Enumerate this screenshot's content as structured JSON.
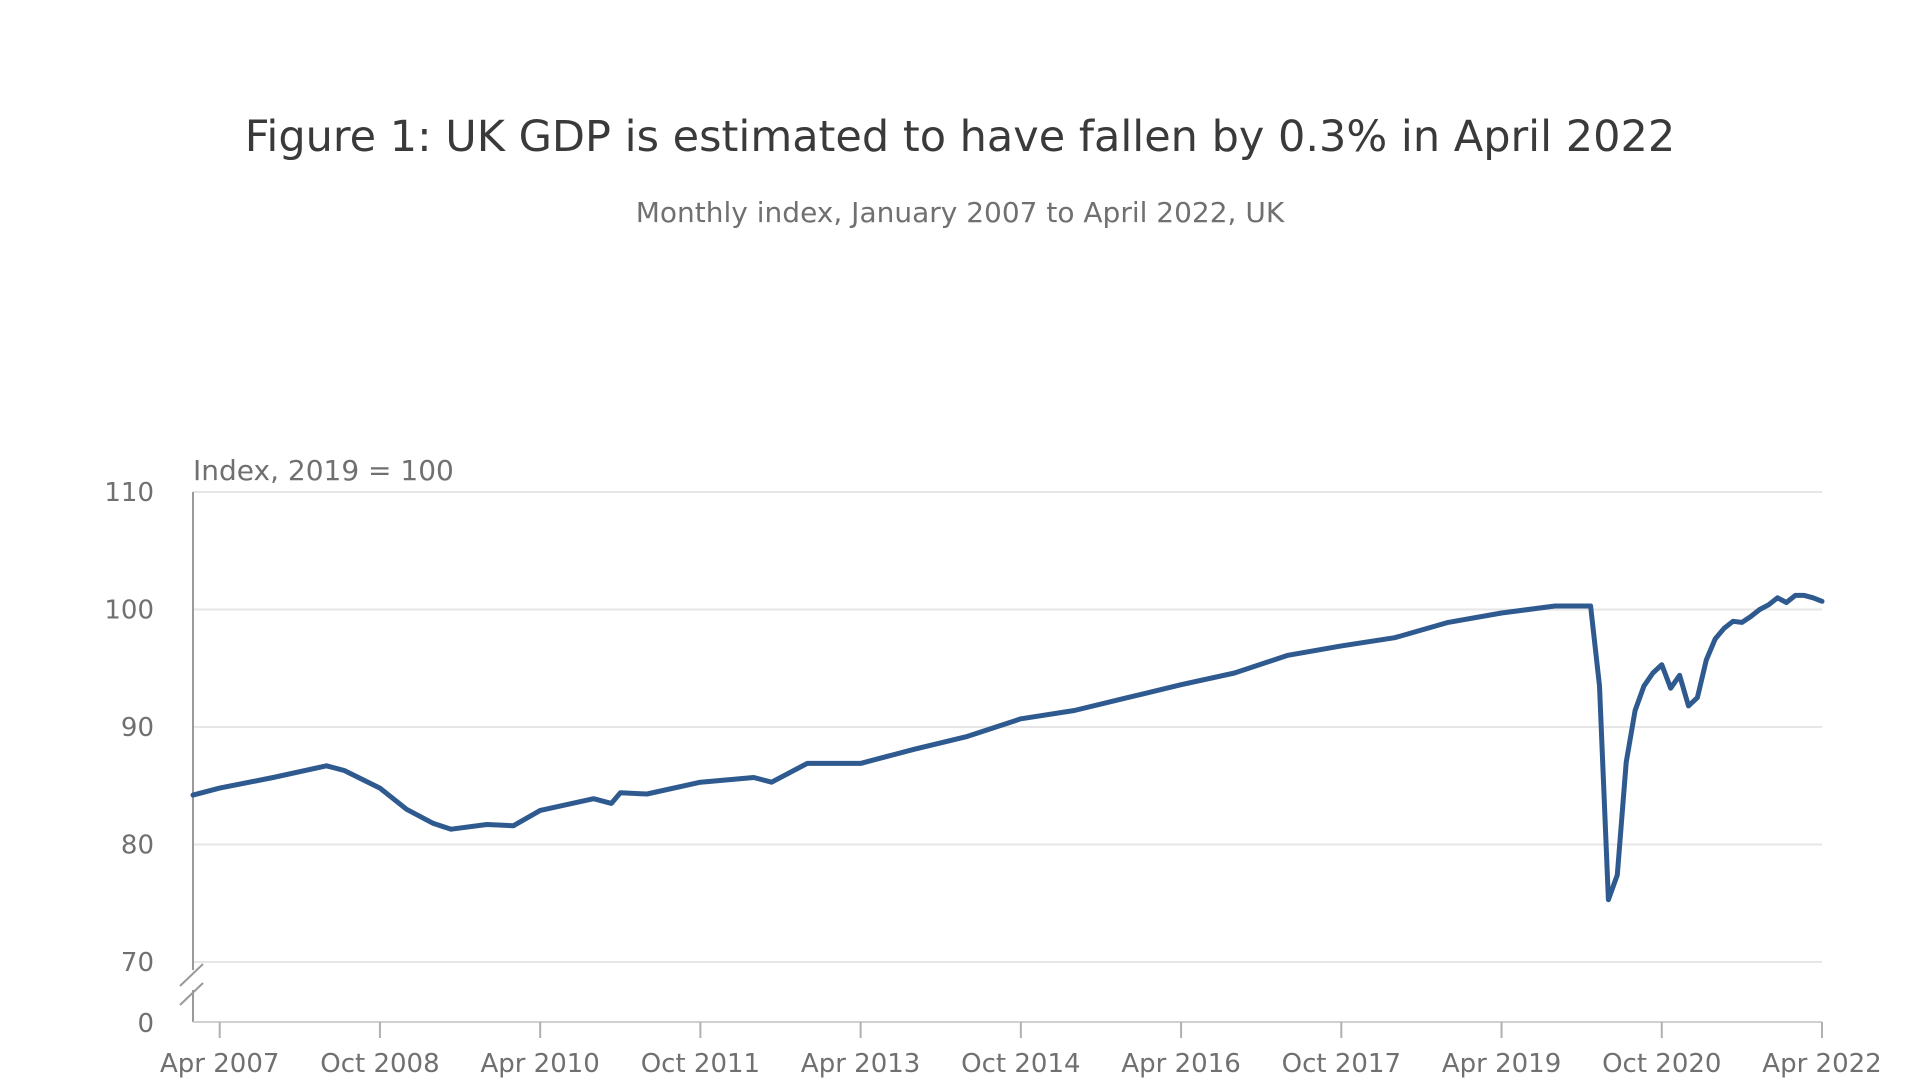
{
  "chart_data": {
    "type": "line",
    "title": "Figure 1: UK GDP is estimated to have fallen by 0.3% in April 2022",
    "subtitle": "Monthly index, January 2007 to April 2022, UK",
    "ylabel": "Index, 2019 = 100",
    "xlabel": "",
    "y_ticks": [
      "110",
      "100",
      "90",
      "80",
      "70",
      "0"
    ],
    "x_ticks": [
      "Apr 2007",
      "Oct 2008",
      "Apr 2010",
      "Oct 2011",
      "Apr 2013",
      "Oct 2014",
      "Apr 2016",
      "Oct 2017",
      "Apr 2019",
      "Oct 2020",
      "Apr 2022"
    ],
    "ylim": [
      70,
      110
    ],
    "axis_break": true,
    "grid": true,
    "line_color": "#2e5a8f",
    "series": [
      {
        "x": [
          "Jan 2007",
          "Apr 2007",
          "Oct 2007",
          "Apr 2008",
          "Jun 2008",
          "Oct 2008",
          "Jan 2009",
          "Apr 2009",
          "Jun 2009",
          "Oct 2009",
          "Jan 2010",
          "Apr 2010",
          "Oct 2010",
          "Dec 2010",
          "Jan 2011",
          "Apr 2011",
          "Oct 2011",
          "Apr 2012",
          "Jun 2012",
          "Oct 2012",
          "Apr 2013",
          "Oct 2013",
          "Apr 2014",
          "Oct 2014",
          "Apr 2015",
          "Oct 2015",
          "Apr 2016",
          "Oct 2016",
          "Apr 2017",
          "Oct 2017",
          "Apr 2018",
          "Oct 2018",
          "Apr 2019",
          "Oct 2019",
          "Feb 2020",
          "Mar 2020",
          "Apr 2020",
          "May 2020",
          "Jun 2020",
          "Jul 2020",
          "Aug 2020",
          "Sep 2020",
          "Oct 2020",
          "Nov 2020",
          "Dec 2020",
          "Jan 2021",
          "Feb 2021",
          "Mar 2021",
          "Apr 2021",
          "May 2021",
          "Jun 2021",
          "Jul 2021",
          "Aug 2021",
          "Sep 2021",
          "Oct 2021",
          "Nov 2021",
          "Dec 2021",
          "Jan 2022",
          "Feb 2022",
          "Mar 2022",
          "Apr 2022"
        ],
        "values": [
          84.2,
          84.8,
          85.7,
          86.7,
          86.3,
          84.8,
          83.0,
          81.8,
          81.3,
          81.7,
          81.6,
          82.9,
          83.9,
          83.5,
          84.4,
          84.3,
          85.3,
          85.7,
          85.3,
          86.9,
          86.9,
          88.1,
          89.2,
          90.7,
          91.4,
          92.5,
          93.6,
          94.6,
          96.1,
          96.9,
          97.6,
          98.9,
          99.7,
          100.3,
          100.3,
          93.5,
          75.3,
          77.4,
          87.0,
          91.4,
          93.5,
          94.6,
          95.3,
          93.3,
          94.4,
          91.8,
          92.5,
          95.7,
          97.5,
          98.4,
          99.0,
          98.9,
          99.4,
          100.0,
          100.4,
          101.0,
          100.6,
          101.2,
          101.2,
          101.0,
          100.7
        ]
      }
    ]
  }
}
